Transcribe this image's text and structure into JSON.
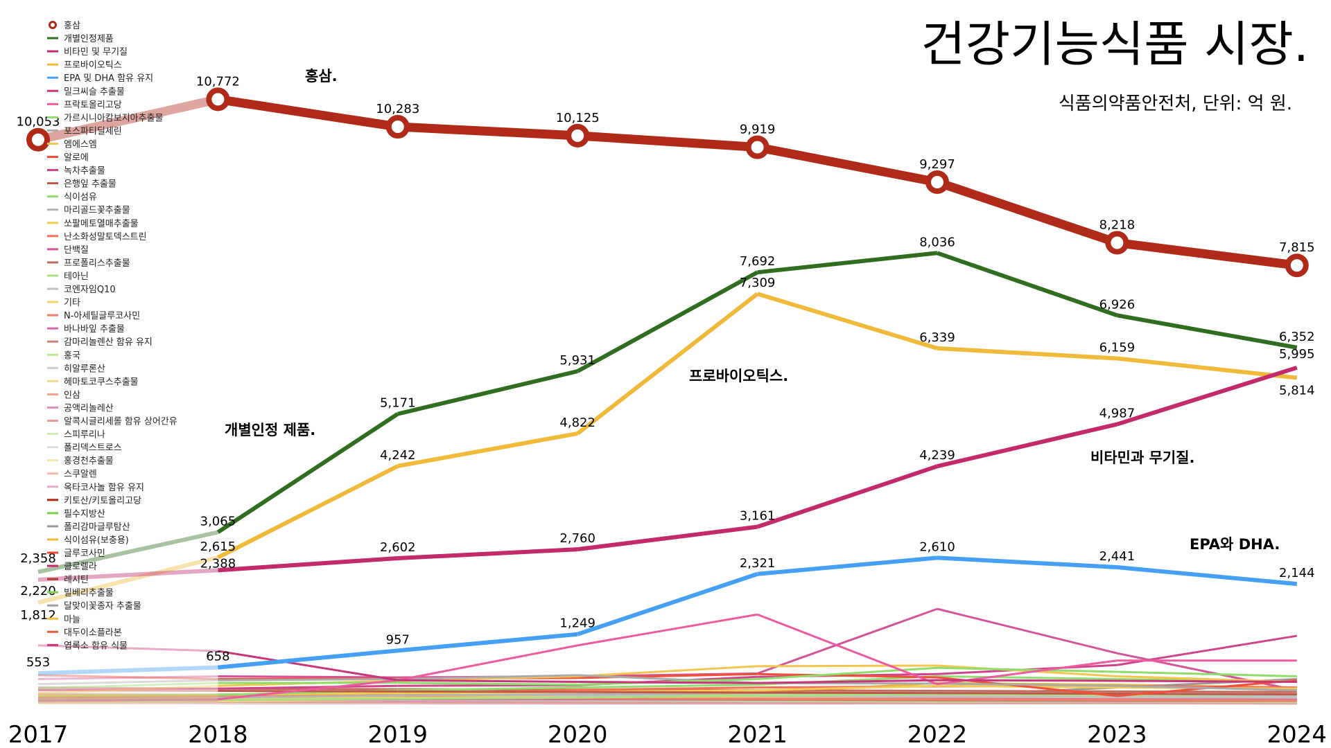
{
  "chart_data": {
    "type": "line",
    "title": "건강기능식품 시장.",
    "subtitle": "식품의약품안전처, 단위: 억 원.",
    "x": [
      "2017",
      "2018",
      "2019",
      "2020",
      "2021",
      "2022",
      "2023",
      "2024"
    ],
    "ylim": [
      0,
      11000
    ],
    "grid": false,
    "legend_position": "top-left",
    "annotations": [
      {
        "text": "홍삼.",
        "series": "홍삼"
      },
      {
        "text": "개별인정 제품.",
        "series": "개별인정제품"
      },
      {
        "text": "프로바이오틱스.",
        "series": "프로바이오틱스"
      },
      {
        "text": "비타민과 무기질.",
        "series": "비타민 및 무기질"
      },
      {
        "text": "EPA와 DHA.",
        "series": "EPA 및 DHA 함유 유지"
      }
    ],
    "series": [
      {
        "name": "홍삼",
        "color": "#b02a1a",
        "labels": true,
        "values": [
          10053,
          10772,
          10283,
          10125,
          9919,
          9297,
          8218,
          7815
        ]
      },
      {
        "name": "개별인정제품",
        "color": "#2f6e1e",
        "labels": true,
        "values": [
          2358,
          3065,
          5171,
          5931,
          7692,
          8036,
          6926,
          6352
        ]
      },
      {
        "name": "비타민 및 무기질",
        "color": "#c22a6c",
        "labels": true,
        "values": [
          2220,
          2388,
          2602,
          2760,
          3161,
          4239,
          4987,
          5995
        ]
      },
      {
        "name": "프로바이오틱스",
        "color": "#f0b93a",
        "labels": true,
        "values": [
          1812,
          2615,
          4242,
          4822,
          7309,
          6339,
          6159,
          5814
        ]
      },
      {
        "name": "EPA 및 DHA 함유 유지",
        "color": "#449ff5",
        "labels": true,
        "values": [
          553,
          658,
          957,
          1249,
          2321,
          2610,
          2441,
          2144
        ]
      },
      {
        "name": "밀크씨슬 추출물",
        "color": "#c8357a",
        "values": [
          1050,
          950,
          430,
          400,
          380,
          430,
          420,
          400
        ]
      },
      {
        "name": "프락토올리고당",
        "color": "#ee5aa0",
        "values": [
          60,
          90,
          430,
          1050,
          1600,
          360,
          780,
          780
        ]
      },
      {
        "name": "가르시니아캄보지아추출물",
        "color": "#8fdc6a",
        "values": [
          290,
          380,
          385,
          350,
          450,
          650,
          580,
          500
        ]
      },
      {
        "name": "포스파티딜세린",
        "color": "#aaaaaa",
        "values": [
          360,
          430,
          450,
          520,
          380,
          370,
          330,
          250
        ]
      },
      {
        "name": "엠에스엠",
        "color": "#f2c650",
        "values": [
          200,
          330,
          420,
          500,
          680,
          690,
          500,
          400
        ]
      },
      {
        "name": "알로에",
        "color": "#ee5038",
        "values": [
          520,
          450,
          460,
          470,
          540,
          480,
          150,
          430
        ]
      },
      {
        "name": "녹차추출물",
        "color": "#d0438a",
        "values": [
          260,
          280,
          330,
          340,
          490,
          540,
          700,
          1220
        ]
      },
      {
        "name": "은행잎 추출물",
        "color": "#c05848",
        "values": [
          250,
          240,
          230,
          220,
          210,
          200,
          190,
          180
        ]
      },
      {
        "name": "식이섬유",
        "color": "#92dc70",
        "values": [
          150,
          170,
          250,
          300,
          350,
          500,
          450,
          400
        ]
      },
      {
        "name": "마리골드꽃추출물",
        "color": "#b4b4b4",
        "values": [
          100,
          120,
          160,
          180,
          200,
          210,
          190,
          160
        ]
      },
      {
        "name": "쏘팔메토열매추출물",
        "color": "#f2cc50",
        "values": [
          150,
          170,
          200,
          220,
          250,
          330,
          300,
          280
        ]
      },
      {
        "name": "난소화성말토덱스트린",
        "color": "#f07058",
        "values": [
          120,
          140,
          180,
          260,
          300,
          320,
          330,
          300
        ]
      },
      {
        "name": "단백질",
        "color": "#d2559a",
        "values": [
          450,
          500,
          480,
          500,
          550,
          1700,
          910,
          250
        ]
      },
      {
        "name": "프로폴리스추출물",
        "color": "#c46a5c",
        "values": [
          300,
          280,
          270,
          260,
          250,
          240,
          230,
          220
        ]
      },
      {
        "name": "테아닌",
        "color": "#a8e080",
        "values": [
          60,
          80,
          100,
          120,
          160,
          180,
          170,
          160
        ]
      },
      {
        "name": "코엔자임Q10",
        "color": "#c0c0c0",
        "values": [
          200,
          180,
          170,
          160,
          150,
          140,
          130,
          120
        ]
      },
      {
        "name": "기타",
        "color": "#f4d070",
        "values": [
          100,
          110,
          120,
          130,
          140,
          150,
          160,
          170
        ]
      },
      {
        "name": "N-아세틸글루코사민",
        "color": "#f28068",
        "values": [
          140,
          130,
          120,
          110,
          100,
          90,
          80,
          70
        ]
      },
      {
        "name": "바나바잎 추출물",
        "color": "#d868a8",
        "values": [
          80,
          80,
          90,
          90,
          100,
          100,
          90,
          90
        ]
      },
      {
        "name": "감마리놀렌산 함유 유지",
        "color": "#c88070",
        "values": [
          120,
          110,
          100,
          90,
          80,
          70,
          60,
          60
        ]
      },
      {
        "name": "홍국",
        "color": "#b8e898",
        "values": [
          100,
          90,
          80,
          70,
          60,
          50,
          50,
          40
        ]
      },
      {
        "name": "히알루론산",
        "color": "#cccccc",
        "values": [
          60,
          80,
          100,
          120,
          140,
          160,
          150,
          140
        ]
      },
      {
        "name": "헤마토코쿠스추출물",
        "color": "#f4dc88",
        "values": [
          40,
          60,
          80,
          100,
          120,
          130,
          120,
          110
        ]
      },
      {
        "name": "인삼",
        "color": "#f2a090",
        "values": [
          90,
          85,
          80,
          75,
          70,
          65,
          60,
          55
        ]
      },
      {
        "name": "공액리놀레산",
        "color": "#e08cc0",
        "values": [
          80,
          70,
          60,
          55,
          50,
          45,
          40,
          35
        ]
      },
      {
        "name": "알콕시글리세롤 함유 상어간유",
        "color": "#e0a098",
        "values": [
          50,
          45,
          40,
          40,
          35,
          30,
          30,
          25
        ]
      },
      {
        "name": "스피루리나",
        "color": "#cceeb0",
        "values": [
          70,
          60,
          55,
          50,
          45,
          40,
          35,
          30
        ]
      },
      {
        "name": "폴리덱스트로스",
        "color": "#dddddd",
        "values": [
          30,
          35,
          40,
          45,
          50,
          55,
          60,
          60
        ]
      },
      {
        "name": "홍경천추출물",
        "color": "#f6e4a8",
        "values": [
          20,
          30,
          40,
          50,
          60,
          60,
          55,
          50
        ]
      },
      {
        "name": "스쿠알렌",
        "color": "#f4b8ac",
        "values": [
          40,
          35,
          30,
          30,
          25,
          25,
          20,
          20
        ]
      },
      {
        "name": "옥타코사놀 함유 유지",
        "color": "#e8a8cc",
        "values": [
          35,
          30,
          30,
          25,
          25,
          20,
          20,
          20
        ]
      },
      {
        "name": "키토산/키토올리고당",
        "color": "#b02a1a",
        "values": [
          60,
          55,
          50,
          45,
          40,
          35,
          30,
          30
        ]
      },
      {
        "name": "필수지방산",
        "color": "#7ed04a",
        "values": [
          30,
          30,
          35,
          35,
          40,
          40,
          45,
          45
        ]
      },
      {
        "name": "폴리감마글루탐산",
        "color": "#999999",
        "values": [
          80,
          70,
          60,
          60,
          70,
          150,
          300,
          450
        ]
      },
      {
        "name": "식이섬유(보충용)",
        "color": "#f0b93a",
        "values": [
          150,
          160,
          170,
          150,
          200,
          380,
          350,
          300
        ]
      },
      {
        "name": "글루코사민",
        "color": "#ee4a30",
        "values": [
          180,
          160,
          140,
          120,
          100,
          80,
          70,
          60
        ]
      },
      {
        "name": "클로렐라",
        "color": "#c22a6c",
        "values": [
          100,
          90,
          80,
          70,
          60,
          55,
          50,
          45
        ]
      },
      {
        "name": "레시틴",
        "color": "#b03a2a",
        "values": [
          50,
          45,
          40,
          40,
          35,
          30,
          30,
          25
        ]
      },
      {
        "name": "빌베리추출물",
        "color": "#80d050",
        "values": [
          40,
          45,
          50,
          55,
          60,
          55,
          50,
          45
        ]
      },
      {
        "name": "달맞이꽃종자 추출물",
        "color": "#a0a0a0",
        "values": [
          45,
          40,
          35,
          35,
          30,
          30,
          25,
          25
        ]
      },
      {
        "name": "마늘",
        "color": "#f0c040",
        "values": [
          30,
          30,
          30,
          25,
          25,
          25,
          20,
          20
        ]
      },
      {
        "name": "대두이소플라본",
        "color": "#ee5a3c",
        "values": [
          60,
          50,
          45,
          40,
          35,
          30,
          25,
          20
        ]
      },
      {
        "name": "엽록소 함유 식물",
        "color": "#c8357a",
        "values": [
          25,
          25,
          25,
          20,
          20,
          20,
          20,
          15
        ]
      }
    ]
  }
}
